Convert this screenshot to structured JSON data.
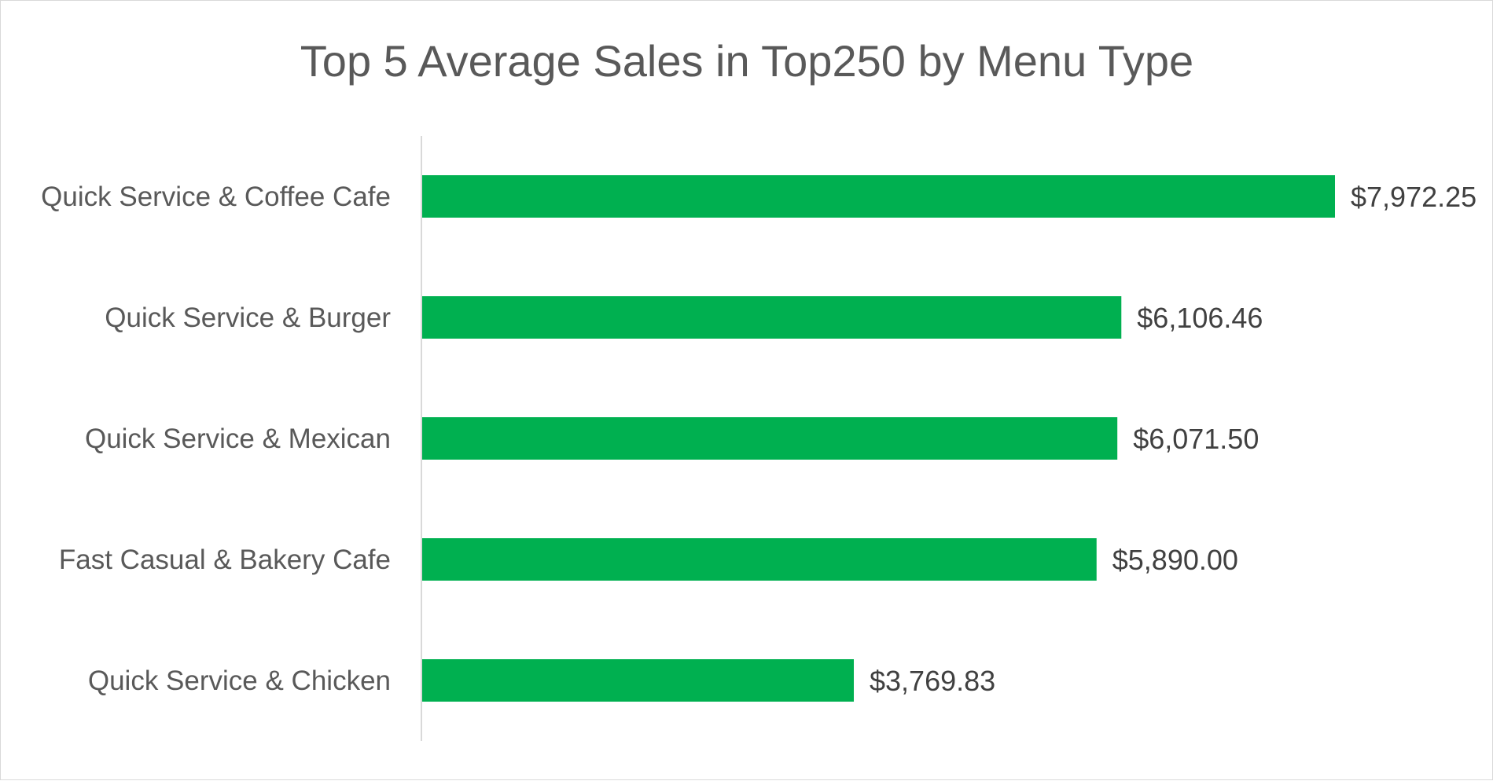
{
  "chart_data": {
    "type": "bar",
    "orientation": "horizontal",
    "title": "Top 5 Average Sales in Top250 by Menu Type",
    "categories": [
      "Quick Service & Coffee Cafe",
      "Quick Service & Burger",
      "Quick Service & Mexican",
      "Fast Casual & Bakery Cafe",
      "Quick Service & Chicken"
    ],
    "values": [
      7972.25,
      6106.46,
      6071.5,
      5890.0,
      3769.83
    ],
    "data_labels": [
      "$7,972.25",
      "$6,106.46",
      "$6,071.50",
      "$5,890.00",
      "$3,769.83"
    ],
    "xlim": [
      0,
      7972.25
    ],
    "grid": false,
    "legend": "none",
    "bar_color": "#00b050"
  }
}
